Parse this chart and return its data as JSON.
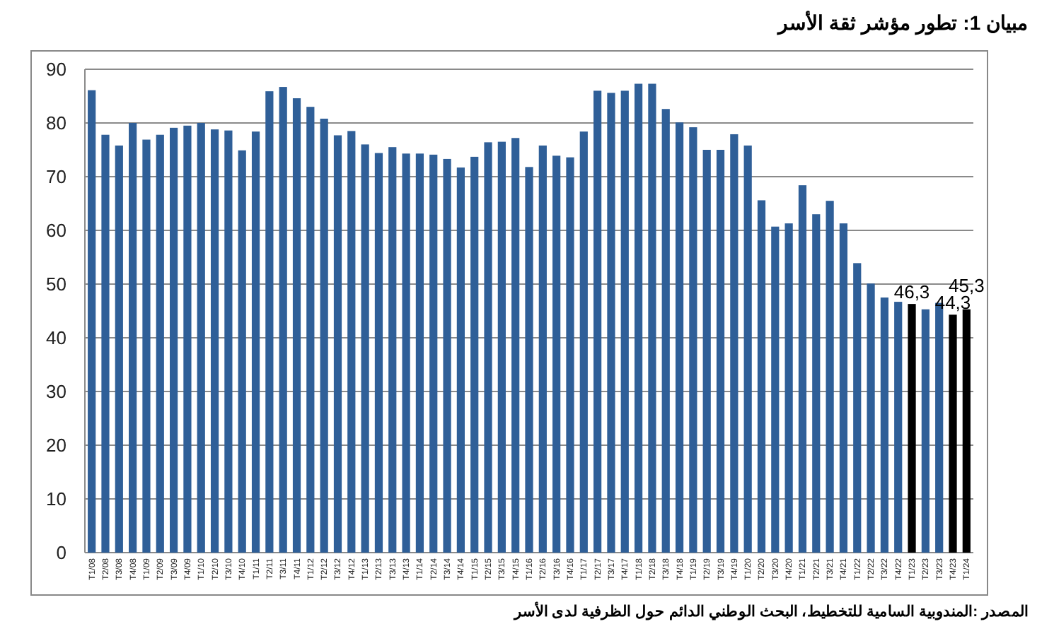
{
  "chart_data": {
    "type": "bar",
    "title": "مبيان 1: تطور مؤشر ثقة الأسر",
    "annotations": [
      "المصدر :المندوبية السامية للتخطيط، البحث الوطني الدائم حول الظرفية لدى الأسر"
    ],
    "categories": [
      "T1/08",
      "T2/08",
      "T3/08",
      "T4/08",
      "T1/09",
      "T2/09",
      "T3/09",
      "T4/09",
      "T1/10",
      "T2/10",
      "T3/10",
      "T4/10",
      "T1/11",
      "T2/11",
      "T3/11",
      "T4/11",
      "T1/12",
      "T2/12",
      "T3/12",
      "T4/12",
      "T1/13",
      "T2/13",
      "T3/13",
      "T4/13",
      "T1/14",
      "T2/14",
      "T3/14",
      "T4/14",
      "T1/15",
      "T2/15",
      "T3/15",
      "T4/15",
      "T1/16",
      "T2/16",
      "T3/16",
      "T4/16",
      "T1/17",
      "T2/17",
      "T3/17",
      "T4/17",
      "T1/18",
      "T2/18",
      "T3/18",
      "T4/18",
      "T1/19",
      "T2/19",
      "T3/19",
      "T4/19",
      "T1/20",
      "T2/20",
      "T3/20",
      "T4/20",
      "T1/21",
      "T2/21",
      "T3/21",
      "T4/21",
      "T1/22",
      "T2/22",
      "T3/22",
      "T4/22",
      "T1/23",
      "T2/23",
      "T3/23",
      "T4/23",
      "T1/24"
    ],
    "values": [
      86.1,
      77.8,
      75.8,
      80.0,
      76.9,
      77.8,
      79.1,
      79.5,
      80.0,
      78.8,
      78.6,
      74.9,
      78.4,
      85.9,
      86.7,
      84.6,
      83.0,
      80.8,
      77.7,
      78.5,
      76.0,
      74.4,
      75.5,
      74.3,
      74.3,
      74.1,
      73.3,
      71.7,
      73.7,
      76.4,
      76.5,
      77.2,
      71.8,
      75.8,
      73.9,
      73.6,
      78.4,
      86.0,
      85.6,
      86.0,
      87.3,
      87.3,
      82.6,
      80.1,
      79.2,
      75.0,
      75.0,
      77.9,
      75.8,
      65.6,
      60.7,
      61.3,
      68.4,
      63.0,
      65.5,
      61.3,
      53.9,
      50.1,
      47.5,
      46.7,
      46.3,
      45.3,
      46.5,
      44.3,
      45.3
    ],
    "colors": [
      "#2f5f98",
      "#2f5f98",
      "#2f5f98",
      "#2f5f98",
      "#2f5f98",
      "#2f5f98",
      "#2f5f98",
      "#2f5f98",
      "#2f5f98",
      "#2f5f98",
      "#2f5f98",
      "#2f5f98",
      "#2f5f98",
      "#2f5f98",
      "#2f5f98",
      "#2f5f98",
      "#2f5f98",
      "#2f5f98",
      "#2f5f98",
      "#2f5f98",
      "#2f5f98",
      "#2f5f98",
      "#2f5f98",
      "#2f5f98",
      "#2f5f98",
      "#2f5f98",
      "#2f5f98",
      "#2f5f98",
      "#2f5f98",
      "#2f5f98",
      "#2f5f98",
      "#2f5f98",
      "#2f5f98",
      "#2f5f98",
      "#2f5f98",
      "#2f5f98",
      "#2f5f98",
      "#2f5f98",
      "#2f5f98",
      "#2f5f98",
      "#2f5f98",
      "#2f5f98",
      "#2f5f98",
      "#2f5f98",
      "#2f5f98",
      "#2f5f98",
      "#2f5f98",
      "#2f5f98",
      "#2f5f98",
      "#2f5f98",
      "#2f5f98",
      "#2f5f98",
      "#2f5f98",
      "#2f5f98",
      "#2f5f98",
      "#2f5f98",
      "#2f5f98",
      "#2f5f98",
      "#2f5f98",
      "#2f5f98",
      "#000000",
      "#2f5f98",
      "#2f5f98",
      "#000000",
      "#000000"
    ],
    "value_labels": [
      null,
      null,
      null,
      null,
      null,
      null,
      null,
      null,
      null,
      null,
      null,
      null,
      null,
      null,
      null,
      null,
      null,
      null,
      null,
      null,
      null,
      null,
      null,
      null,
      null,
      null,
      null,
      null,
      null,
      null,
      null,
      null,
      null,
      null,
      null,
      null,
      null,
      null,
      null,
      null,
      null,
      null,
      null,
      null,
      null,
      null,
      null,
      null,
      null,
      null,
      null,
      null,
      null,
      null,
      null,
      null,
      null,
      null,
      null,
      null,
      "46,3",
      null,
      null,
      "44,3",
      "45,3"
    ],
    "ylim": [
      0,
      90
    ],
    "yticks": [
      0,
      10,
      20,
      30,
      40,
      50,
      60,
      70,
      80,
      90
    ],
    "grid": "y"
  }
}
